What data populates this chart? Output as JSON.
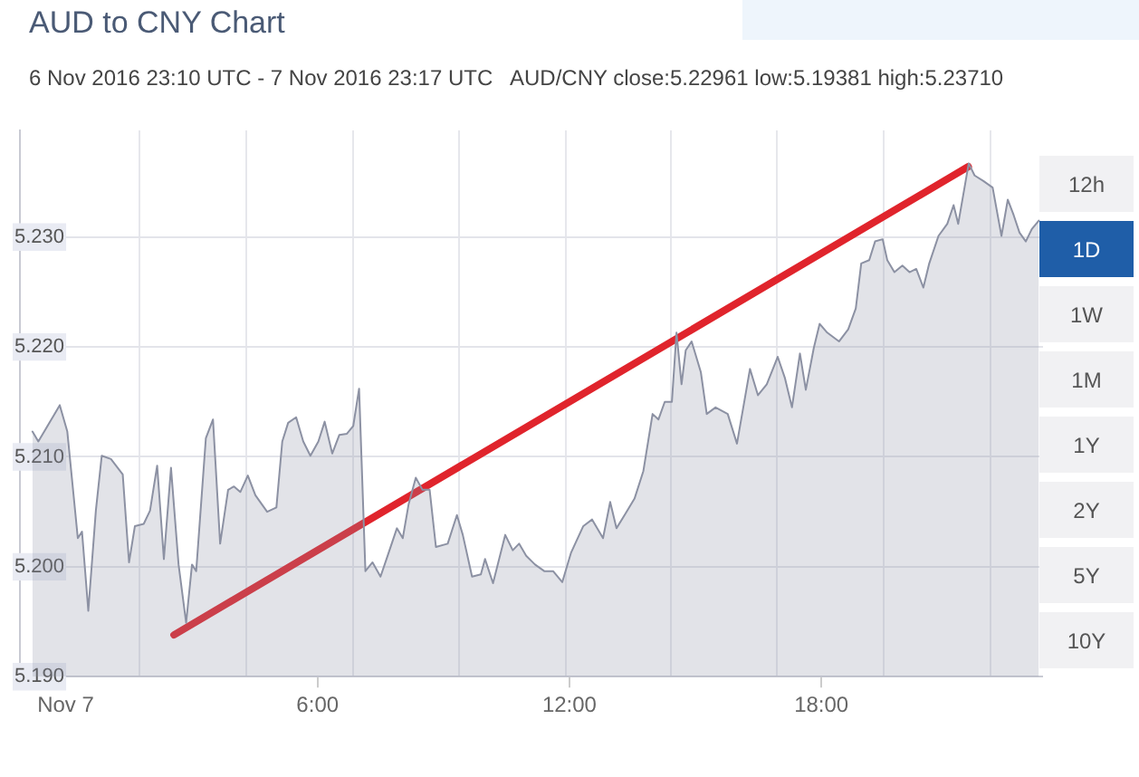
{
  "chart_data": {
    "type": "area",
    "title": "AUD to CNY Chart",
    "subtitle": "6 Nov 2016 23:10 UTC - 7 Nov 2016 23:17 UTC   AUD/CNY close:5.22961 low:5.19381 high:5.23710",
    "annotations": [
      "12h",
      "1D",
      "1W",
      "1M",
      "1Y",
      "2Y",
      "5Y",
      "10Y"
    ],
    "xlim": [
      -0.83,
      23.28
    ],
    "xticks": [
      {
        "value": 0,
        "label": "Nov 7"
      },
      {
        "value": 1.76,
        "label": null
      },
      {
        "value": 4.3,
        "label": null
      },
      {
        "value": 6,
        "label": "6:00"
      },
      {
        "value": 6.84,
        "label": null
      },
      {
        "value": 9.38,
        "label": null
      },
      {
        "value": 11.91,
        "label": null
      },
      {
        "value": 12,
        "label": "12:00"
      },
      {
        "value": 14.41,
        "label": null
      },
      {
        "value": 16.95,
        "label": null
      },
      {
        "value": 18,
        "label": "18:00"
      },
      {
        "value": 19.48,
        "label": null
      },
      {
        "value": 22.02,
        "label": null
      }
    ],
    "ylim": [
      5.19,
      5.2397
    ],
    "yticks": [
      {
        "value": 5.19,
        "label": "5.190"
      },
      {
        "value": 5.2,
        "label": "5.200"
      },
      {
        "value": 5.21,
        "label": "5.210"
      },
      {
        "value": 5.22,
        "label": "5.220"
      },
      {
        "value": 5.23,
        "label": "5.230"
      }
    ],
    "grid": true,
    "legend": false,
    "marker": "none",
    "series": [
      {
        "type": "area",
        "color": "#8c91a3",
        "x": [
          -0.79,
          -0.65,
          -0.14,
          0.04,
          0.29,
          0.39,
          0.54,
          0.72,
          0.86,
          1.08,
          1.36,
          1.51,
          1.65,
          1.86,
          2.01,
          2.18,
          2.34,
          2.51,
          2.69,
          2.87,
          3.01,
          3.11,
          3.34,
          3.51,
          3.68,
          3.87,
          4.01,
          4.16,
          4.34,
          4.52,
          4.8,
          5.02,
          5.16,
          5.3,
          5.49,
          5.66,
          5.83,
          6.02,
          6.17,
          6.35,
          6.52,
          6.7,
          6.85,
          6.99,
          7.14,
          7.31,
          7.5,
          7.67,
          7.89,
          8.03,
          8.17,
          8.34,
          8.5,
          8.67,
          8.82,
          9.1,
          9.32,
          9.46,
          9.68,
          9.89,
          9.99,
          10.18,
          10.47,
          10.65,
          10.8,
          10.97,
          11.18,
          11.4,
          11.61,
          11.83,
          12.04,
          12.33,
          12.54,
          12.8,
          12.97,
          13.12,
          13.33,
          13.55,
          13.76,
          13.98,
          14.12,
          14.27,
          14.44,
          14.55,
          14.67,
          14.77,
          14.91,
          15.13,
          15.27,
          15.48,
          15.77,
          15.99,
          16.3,
          16.49,
          16.7,
          16.96,
          17.13,
          17.3,
          17.49,
          17.63,
          17.82,
          17.96,
          18.14,
          18.42,
          18.64,
          18.82,
          18.95,
          19.14,
          19.28,
          19.46,
          19.57,
          19.74,
          19.93,
          20.1,
          20.26,
          20.43,
          20.57,
          20.79,
          21,
          21.15,
          21.26,
          21.41,
          21.51,
          21.65,
          21.86,
          22.08,
          22.29,
          22.44,
          22.58,
          22.72,
          22.87,
          23.01,
          23.18
        ],
        "values": [
          5.2123,
          5.2114,
          5.2147,
          5.2123,
          5.2026,
          5.2032,
          5.196,
          5.2051,
          5.2101,
          5.2098,
          5.2084,
          5.2004,
          5.2037,
          5.2039,
          5.2051,
          5.2092,
          5.2007,
          5.209,
          5.2002,
          5.1949,
          5.2002,
          5.1996,
          5.2117,
          5.2134,
          5.2021,
          5.207,
          5.2073,
          5.2068,
          5.2083,
          5.2065,
          5.205,
          5.2054,
          5.2114,
          5.2131,
          5.2136,
          5.2114,
          5.2101,
          5.2114,
          5.2132,
          5.2103,
          5.212,
          5.2121,
          5.2128,
          5.2162,
          5.1996,
          5.2004,
          5.1991,
          5.201,
          5.2035,
          5.2026,
          5.2057,
          5.2081,
          5.207,
          5.207,
          5.2018,
          5.2021,
          5.2047,
          5.2029,
          5.1991,
          5.1993,
          5.2007,
          5.1985,
          5.2029,
          5.2015,
          5.2021,
          5.201,
          5.2002,
          5.1996,
          5.1996,
          5.1986,
          5.2013,
          5.2037,
          5.2043,
          5.2026,
          5.2059,
          5.2035,
          5.2048,
          5.2062,
          5.2087,
          5.2139,
          5.2134,
          5.215,
          5.215,
          5.2213,
          5.2166,
          5.2197,
          5.2205,
          5.2177,
          5.2139,
          5.2145,
          5.2139,
          5.2112,
          5.218,
          5.2156,
          5.2166,
          5.2191,
          5.2172,
          5.2145,
          5.2194,
          5.2161,
          5.2199,
          5.2221,
          5.2213,
          5.2205,
          5.2216,
          5.2235,
          5.2276,
          5.2279,
          5.2296,
          5.2298,
          5.2279,
          5.2268,
          5.2274,
          5.2268,
          5.2271,
          5.2254,
          5.2276,
          5.2301,
          5.2312,
          5.2329,
          5.2312,
          5.2345,
          5.2367,
          5.2356,
          5.2351,
          5.2345,
          5.2301,
          5.2334,
          5.232,
          5.2304,
          5.2296,
          5.2307,
          5.2315
        ]
      },
      {
        "type": "line",
        "color": "#e0242c",
        "x": [
          2.58,
          21.5
        ],
        "values": [
          5.1938,
          5.2364
        ]
      }
    ]
  }
}
